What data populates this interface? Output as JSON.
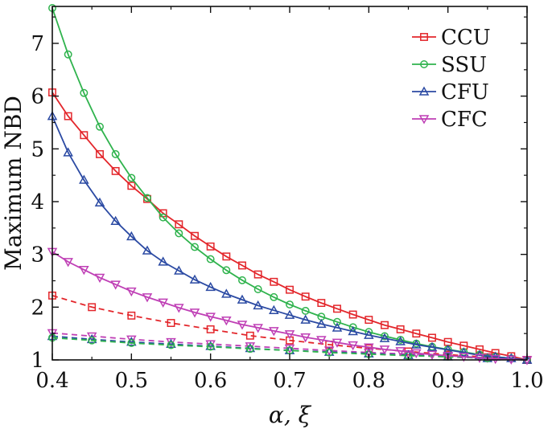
{
  "chart_data": {
    "type": "line",
    "title": "",
    "xlabel": "α, ξ",
    "ylabel": "Maximum NBD",
    "xlim": [
      0.4,
      1.0
    ],
    "ylim": [
      1,
      7.7
    ],
    "x_ticks": [
      "0.4",
      "0.5",
      "0.6",
      "0.7",
      "0.8",
      "0.9",
      "1.0"
    ],
    "y_ticks": [
      "1",
      "2",
      "3",
      "4",
      "5",
      "6",
      "7"
    ],
    "grid": false,
    "legend_position": "top-right",
    "series": [
      {
        "name": "CCU",
        "color": "#e3262b",
        "marker": "square",
        "style": "solid",
        "x": [
          0.4,
          0.42,
          0.44,
          0.46,
          0.48,
          0.5,
          0.52,
          0.54,
          0.56,
          0.58,
          0.6,
          0.62,
          0.64,
          0.66,
          0.68,
          0.7,
          0.72,
          0.74,
          0.76,
          0.78,
          0.8,
          0.82,
          0.84,
          0.86,
          0.88,
          0.9,
          0.92,
          0.94,
          0.96,
          0.98,
          1.0
        ],
        "values": [
          6.07,
          5.62,
          5.26,
          4.9,
          4.58,
          4.3,
          4.05,
          3.78,
          3.57,
          3.35,
          3.15,
          2.96,
          2.79,
          2.62,
          2.48,
          2.33,
          2.2,
          2.08,
          1.97,
          1.86,
          1.76,
          1.66,
          1.58,
          1.5,
          1.42,
          1.34,
          1.27,
          1.2,
          1.13,
          1.07,
          1.0
        ]
      },
      {
        "name": "SSU",
        "color": "#2fb34d",
        "marker": "circle",
        "style": "solid",
        "x": [
          0.4,
          0.42,
          0.44,
          0.46,
          0.48,
          0.5,
          0.52,
          0.54,
          0.56,
          0.58,
          0.6,
          0.62,
          0.64,
          0.66,
          0.68,
          0.7,
          0.72,
          0.74,
          0.76,
          0.78,
          0.8,
          0.82,
          0.84,
          0.86,
          0.88,
          0.9,
          0.92,
          0.94,
          0.96,
          0.98,
          1.0
        ],
        "values": [
          7.67,
          6.79,
          6.06,
          5.42,
          4.9,
          4.45,
          4.07,
          3.7,
          3.4,
          3.14,
          2.91,
          2.7,
          2.51,
          2.34,
          2.19,
          2.05,
          1.93,
          1.82,
          1.72,
          1.62,
          1.53,
          1.45,
          1.38,
          1.31,
          1.25,
          1.2,
          1.15,
          1.1,
          1.06,
          1.03,
          1.0
        ]
      },
      {
        "name": "CFU",
        "color": "#2b4aa3",
        "marker": "triangle-up",
        "style": "solid",
        "x": [
          0.4,
          0.42,
          0.44,
          0.46,
          0.48,
          0.5,
          0.52,
          0.54,
          0.56,
          0.58,
          0.6,
          0.62,
          0.64,
          0.66,
          0.68,
          0.7,
          0.72,
          0.74,
          0.76,
          0.78,
          0.8,
          0.82,
          0.84,
          0.86,
          0.88,
          0.9,
          0.92,
          0.94,
          0.96,
          0.98,
          1.0
        ],
        "values": [
          5.62,
          4.93,
          4.41,
          3.98,
          3.63,
          3.34,
          3.07,
          2.86,
          2.69,
          2.52,
          2.38,
          2.25,
          2.14,
          2.03,
          1.94,
          1.85,
          1.76,
          1.68,
          1.61,
          1.54,
          1.47,
          1.41,
          1.35,
          1.29,
          1.24,
          1.19,
          1.14,
          1.09,
          1.06,
          1.03,
          1.0
        ]
      },
      {
        "name": "CFC",
        "color": "#bf3fb5",
        "marker": "triangle-down",
        "style": "solid",
        "x": [
          0.4,
          0.42,
          0.44,
          0.46,
          0.48,
          0.5,
          0.52,
          0.54,
          0.56,
          0.58,
          0.6,
          0.62,
          0.64,
          0.66,
          0.68,
          0.7,
          0.72,
          0.74,
          0.76,
          0.78,
          0.8,
          0.82,
          0.84,
          0.86,
          0.88,
          0.9,
          0.92,
          0.94,
          0.96,
          0.98,
          1.0
        ],
        "values": [
          3.05,
          2.86,
          2.71,
          2.56,
          2.43,
          2.3,
          2.19,
          2.09,
          1.99,
          1.9,
          1.82,
          1.75,
          1.67,
          1.61,
          1.55,
          1.49,
          1.43,
          1.38,
          1.33,
          1.28,
          1.24,
          1.2,
          1.17,
          1.13,
          1.1,
          1.08,
          1.06,
          1.04,
          1.02,
          1.01,
          1.0
        ]
      },
      {
        "name": "",
        "color": "#e3262b",
        "marker": "square",
        "style": "dashed",
        "x": [
          0.4,
          0.45,
          0.5,
          0.55,
          0.6,
          0.65,
          0.7,
          0.75,
          0.8,
          0.85,
          0.9,
          0.95,
          1.0
        ],
        "values": [
          2.22,
          2.0,
          1.84,
          1.7,
          1.58,
          1.46,
          1.37,
          1.29,
          1.22,
          1.16,
          1.1,
          1.05,
          1.0
        ]
      },
      {
        "name": "",
        "color": "#bf3fb5",
        "marker": "triangle-down",
        "style": "dashed",
        "x": [
          0.4,
          0.45,
          0.5,
          0.55,
          0.6,
          0.65,
          0.7,
          0.75,
          0.8,
          0.85,
          0.9,
          0.95,
          1.0
        ],
        "values": [
          1.51,
          1.45,
          1.39,
          1.34,
          1.3,
          1.26,
          1.22,
          1.18,
          1.14,
          1.11,
          1.08,
          1.04,
          1.0
        ]
      },
      {
        "name": "",
        "color": "#2b4aa3",
        "marker": "triangle-up",
        "style": "dashed",
        "x": [
          0.4,
          0.45,
          0.5,
          0.55,
          0.6,
          0.65,
          0.7,
          0.75,
          0.8,
          0.85,
          0.9,
          0.95,
          1.0
        ],
        "values": [
          1.45,
          1.39,
          1.34,
          1.3,
          1.26,
          1.22,
          1.18,
          1.15,
          1.12,
          1.09,
          1.06,
          1.03,
          1.0
        ]
      },
      {
        "name": "",
        "color": "#2fb34d",
        "marker": "circle",
        "style": "dashed",
        "x": [
          0.4,
          0.45,
          0.5,
          0.55,
          0.6,
          0.65,
          0.7,
          0.75,
          0.8,
          0.85,
          0.9,
          0.95,
          1.0
        ],
        "values": [
          1.42,
          1.37,
          1.32,
          1.28,
          1.25,
          1.21,
          1.18,
          1.14,
          1.11,
          1.08,
          1.06,
          1.03,
          1.0
        ]
      }
    ]
  }
}
